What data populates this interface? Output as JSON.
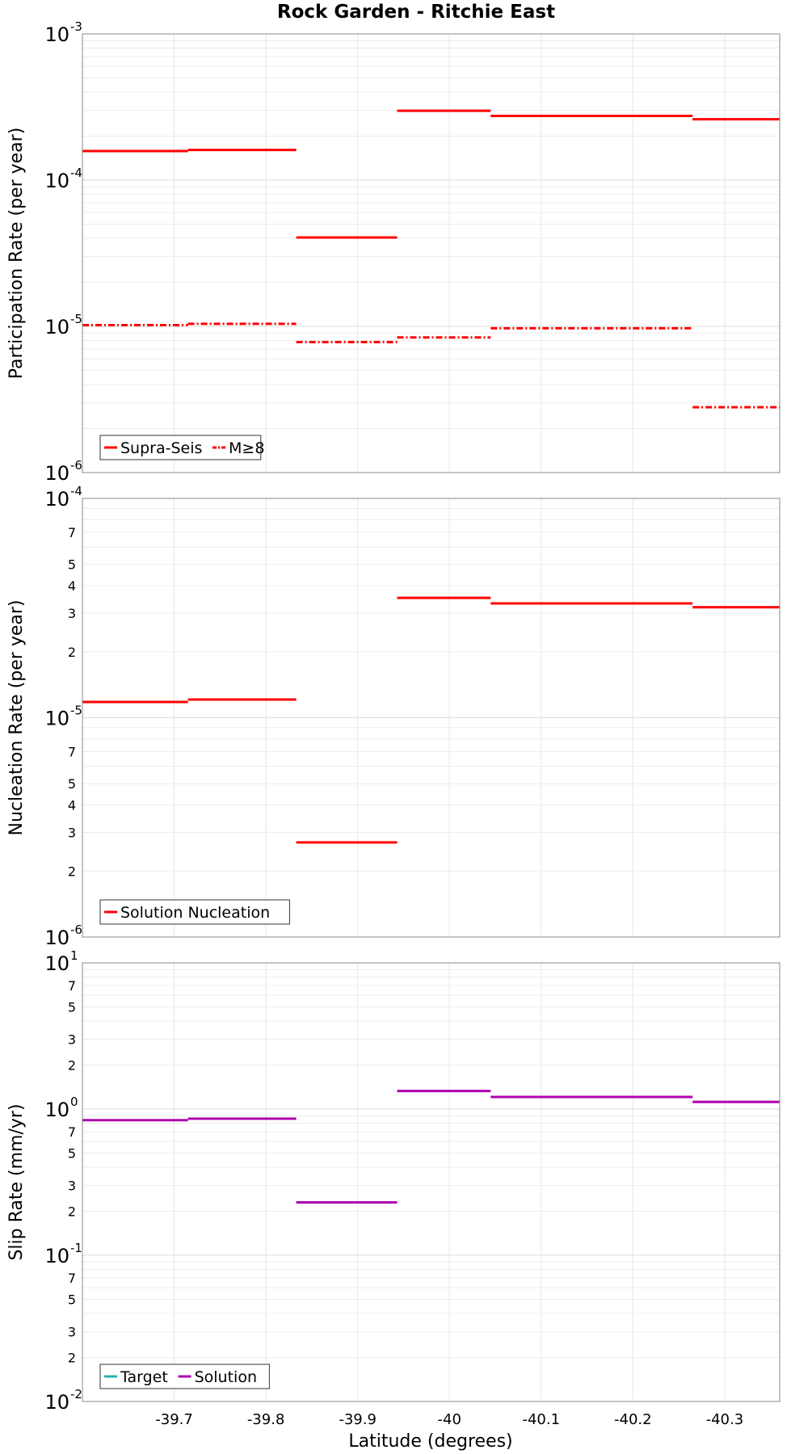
{
  "chart_data": {
    "type": "line",
    "title": "Rock Garden - Ritchie East",
    "xlabel": "Latitude (degrees)",
    "xlim": [
      -39.6,
      -40.36
    ],
    "xticks": [
      -39.7,
      -39.8,
      -39.9,
      -40,
      -40.1,
      -40.2,
      -40.3
    ],
    "xtick_labels": [
      "-39.7",
      "-39.8",
      "-39.9",
      "-40",
      "-40.1",
      "-40.2",
      "-40.3"
    ],
    "panels": [
      {
        "ylabel": "Participation Rate (per year)",
        "scale": "log",
        "ylim_exp": [
          -6,
          -3
        ],
        "major_ticks": [
          {
            "base": "10",
            "exp": "-6",
            "value_exp": -6
          },
          {
            "base": "10",
            "exp": "-5",
            "value_exp": -5
          },
          {
            "base": "10",
            "exp": "-4",
            "value_exp": -4
          },
          {
            "base": "10",
            "exp": "-3",
            "value_exp": -3
          }
        ],
        "minor_labels": [],
        "legend": [
          {
            "label": "Supra-Seis",
            "color": "#ff0000",
            "dash": "solid"
          },
          {
            "label": "M≥8",
            "color": "#ff0000",
            "dash": "dashdot"
          }
        ],
        "series": [
          {
            "name": "Supra-Seis",
            "color": "#ff0000",
            "dash": "solid",
            "segments": [
              {
                "x0": -39.6,
                "x1": -39.715,
                "y": 0.000158
              },
              {
                "x0": -39.715,
                "x1": -39.833,
                "y": 0.000161
              },
              {
                "x0": -39.833,
                "x1": -39.943,
                "y": 4.05e-05
              },
              {
                "x0": -39.943,
                "x1": -40.045,
                "y": 0.000298
              },
              {
                "x0": -40.045,
                "x1": -40.265,
                "y": 0.000275
              },
              {
                "x0": -40.265,
                "x1": -40.36,
                "y": 0.000261
              }
            ]
          },
          {
            "name": "M≥8",
            "color": "#ff0000",
            "dash": "dashdot",
            "segments": [
              {
                "x0": -39.6,
                "x1": -39.715,
                "y": 1.02e-05
              },
              {
                "x0": -39.715,
                "x1": -39.833,
                "y": 1.04e-05
              },
              {
                "x0": -39.833,
                "x1": -39.943,
                "y": 7.8e-06
              },
              {
                "x0": -39.943,
                "x1": -40.045,
                "y": 8.4e-06
              },
              {
                "x0": -40.045,
                "x1": -40.265,
                "y": 9.7e-06
              },
              {
                "x0": -40.265,
                "x1": -40.36,
                "y": 2.8e-06
              }
            ]
          }
        ]
      },
      {
        "ylabel": "Nucleation Rate (per year)",
        "scale": "log",
        "ylim_exp": [
          -6,
          -4
        ],
        "major_ticks": [
          {
            "base": "10",
            "exp": "-6",
            "value_exp": -6
          },
          {
            "base": "10",
            "exp": "-5",
            "value_exp": -5
          },
          {
            "base": "10",
            "exp": "-4",
            "value_exp": -4
          }
        ],
        "minor_labels": [
          "2",
          "3",
          "4",
          "5",
          "7"
        ],
        "legend": [
          {
            "label": "Solution Nucleation",
            "color": "#ff0000",
            "dash": "solid"
          }
        ],
        "series": [
          {
            "name": "Solution Nucleation",
            "color": "#ff0000",
            "dash": "solid",
            "segments": [
              {
                "x0": -39.6,
                "x1": -39.715,
                "y": 1.18e-05
              },
              {
                "x0": -39.715,
                "x1": -39.833,
                "y": 1.21e-05
              },
              {
                "x0": -39.833,
                "x1": -39.943,
                "y": 2.7e-06
              },
              {
                "x0": -39.943,
                "x1": -40.045,
                "y": 3.52e-05
              },
              {
                "x0": -40.045,
                "x1": -40.265,
                "y": 3.32e-05
              },
              {
                "x0": -40.265,
                "x1": -40.36,
                "y": 3.19e-05
              }
            ]
          }
        ]
      },
      {
        "ylabel": "Slip Rate (mm/yr)",
        "scale": "log",
        "ylim_exp": [
          -2,
          1
        ],
        "major_ticks": [
          {
            "base": "10",
            "exp": "-2",
            "value_exp": -2
          },
          {
            "base": "10",
            "exp": "-1",
            "value_exp": -1
          },
          {
            "base": "10",
            "exp": "0",
            "value_exp": 0
          },
          {
            "base": "10",
            "exp": "1",
            "value_exp": 1
          }
        ],
        "minor_labels": [
          "2",
          "3",
          "5",
          "7"
        ],
        "legend": [
          {
            "label": "Target",
            "color": "#20b2aa",
            "dash": "solid"
          },
          {
            "label": "Solution",
            "color": "#b000b0",
            "dash": "solid"
          }
        ],
        "series": [
          {
            "name": "Solution",
            "color": "#b000b0",
            "dash": "solid",
            "segments": [
              {
                "x0": -39.6,
                "x1": -39.715,
                "y": 0.84
              },
              {
                "x0": -39.715,
                "x1": -39.833,
                "y": 0.86
              },
              {
                "x0": -39.833,
                "x1": -39.943,
                "y": 0.23
              },
              {
                "x0": -39.943,
                "x1": -40.045,
                "y": 1.33
              },
              {
                "x0": -40.045,
                "x1": -40.265,
                "y": 1.21
              },
              {
                "x0": -40.265,
                "x1": -40.36,
                "y": 1.12
              }
            ]
          }
        ]
      }
    ]
  }
}
